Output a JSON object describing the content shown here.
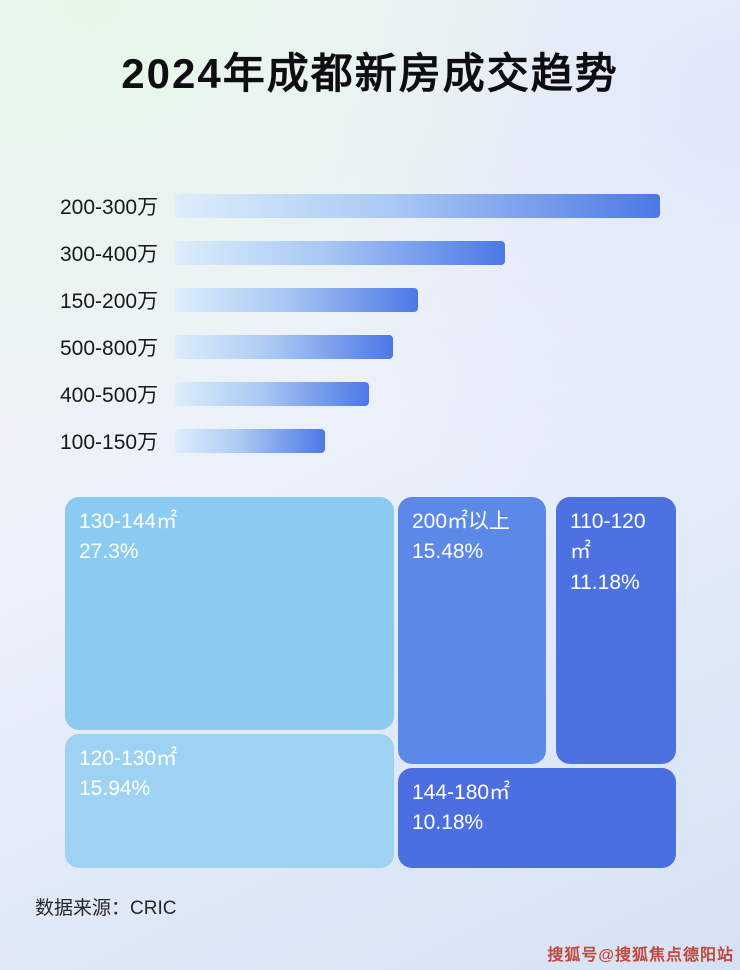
{
  "title": "2024年成都新房成交趋势",
  "chart_data": [
    {
      "type": "bar",
      "orientation": "horizontal",
      "title": "2024年成都新房成交趋势",
      "categories": [
        "200-300万",
        "300-400万",
        "150-200万",
        "500-800万",
        "400-500万",
        "100-150万"
      ],
      "values": [
        100,
        68,
        50,
        45,
        40,
        31
      ],
      "value_unit": "relative bar length % of longest bar (no axis labels shown)",
      "legend": "none",
      "grid": "off"
    },
    {
      "type": "treemap",
      "blocks": [
        {
          "label": "130-144㎡",
          "pct": "27.3%",
          "color": "#8BCBF1"
        },
        {
          "label": "200㎡以上",
          "pct": "15.48%",
          "color": "#5C88E8"
        },
        {
          "label": "110-120㎡",
          "pct": "11.18%",
          "color": "#4E71E2"
        },
        {
          "label": "120-130㎡",
          "pct": "15.94%",
          "color": "#9DD2F3"
        },
        {
          "label": "144-180㎡",
          "pct": "10.18%",
          "color": "#4B6EE0"
        }
      ]
    }
  ],
  "source": "数据来源：CRIC",
  "watermark": "搜狐号@搜狐焦点德阳站"
}
